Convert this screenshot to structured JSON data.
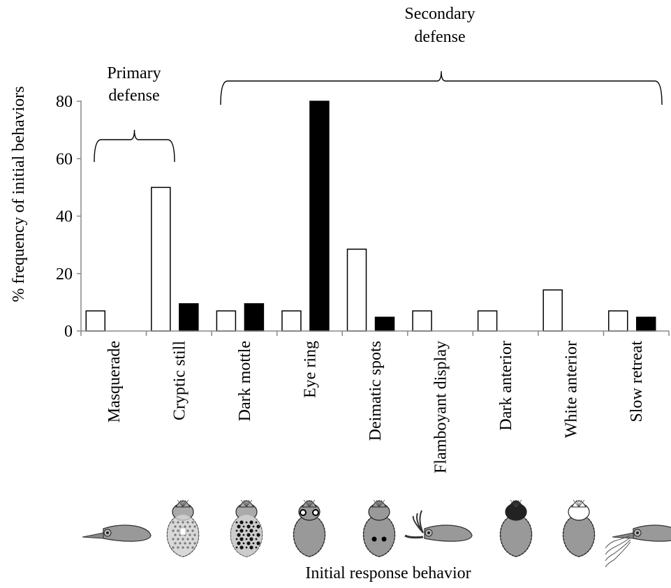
{
  "chart_data": {
    "type": "bar",
    "title": "",
    "xlabel": "Initial response behavior",
    "ylabel": "% frequency of initial behaviors",
    "ylim": [
      0,
      80
    ],
    "yticks": [
      0,
      20,
      40,
      60,
      80
    ],
    "categories": [
      "Masquerade",
      "Cryptic still",
      "Dark mottle",
      "Eye ring",
      "Deimatic spots",
      "Flamboyant display",
      "Dark anterior",
      "White anterior",
      "Slow retreat"
    ],
    "series": [
      {
        "color": "#ffffff",
        "values": [
          7,
          50,
          7,
          7,
          28.5,
          7,
          7,
          14.3,
          7
        ]
      },
      {
        "color": "#000000",
        "values": [
          0,
          9.5,
          9.5,
          80,
          4.8,
          0,
          0,
          0,
          4.8
        ]
      }
    ],
    "grid": false,
    "legend": "none",
    "annotations": [
      {
        "label": "Primary defense",
        "lines": [
          "Primary",
          "defense"
        ],
        "from_category": 0,
        "to_category": 1
      },
      {
        "label": "Secondary defense",
        "lines": [
          "Secondary",
          "defense"
        ],
        "from_category": 2,
        "to_category": 8
      }
    ],
    "icons": [
      "cuttlefish-masquerade-icon",
      "cuttlefish-cryptic-still-icon",
      "cuttlefish-dark-mottle-icon",
      "cuttlefish-eye-ring-icon",
      "cuttlefish-deimatic-spots-icon",
      "cuttlefish-flamboyant-display-icon",
      "cuttlefish-dark-anterior-icon",
      "cuttlefish-white-anterior-icon",
      "cuttlefish-slow-retreat-icon"
    ]
  }
}
